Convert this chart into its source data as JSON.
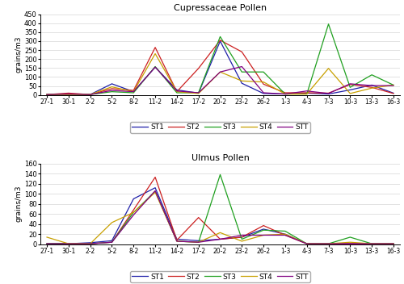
{
  "x_labels": [
    "27-1",
    "30-1",
    "2-2",
    "5-2",
    "8-2",
    "11-2",
    "14-2",
    "17-2",
    "20-2",
    "23-2",
    "26-2",
    "1-3",
    "4-3",
    "7-3",
    "10-3",
    "13-3",
    "16-3"
  ],
  "cup_ST1": [
    2,
    5,
    2,
    62,
    18,
    155,
    28,
    10,
    300,
    65,
    8,
    5,
    10,
    5,
    28,
    55,
    10
  ],
  "cup_ST2": [
    2,
    10,
    2,
    35,
    25,
    265,
    18,
    148,
    305,
    240,
    60,
    12,
    12,
    10,
    58,
    42,
    8
  ],
  "cup_ST3": [
    2,
    2,
    2,
    18,
    12,
    158,
    12,
    12,
    325,
    128,
    128,
    5,
    5,
    395,
    42,
    112,
    55
  ],
  "cup_ST4": [
    2,
    2,
    2,
    45,
    18,
    230,
    18,
    8,
    128,
    78,
    72,
    5,
    5,
    148,
    8,
    38,
    55
  ],
  "cup_STT": [
    2,
    5,
    2,
    25,
    18,
    155,
    22,
    12,
    128,
    158,
    12,
    5,
    22,
    8,
    62,
    52,
    52
  ],
  "ulm_ST1": [
    1,
    1,
    3,
    7,
    90,
    112,
    10,
    7,
    10,
    14,
    30,
    20,
    1,
    1,
    1,
    1,
    1
  ],
  "ulm_ST2": [
    1,
    1,
    1,
    4,
    68,
    133,
    8,
    53,
    10,
    14,
    37,
    18,
    1,
    1,
    1,
    1,
    1
  ],
  "ulm_ST3": [
    1,
    1,
    1,
    4,
    63,
    105,
    6,
    4,
    138,
    10,
    28,
    26,
    1,
    1,
    14,
    1,
    1
  ],
  "ulm_ST4": [
    14,
    1,
    1,
    43,
    63,
    103,
    6,
    4,
    23,
    6,
    18,
    20,
    1,
    1,
    4,
    1,
    1
  ],
  "ulm_STT": [
    1,
    1,
    1,
    4,
    58,
    106,
    6,
    4,
    10,
    18,
    18,
    18,
    1,
    1,
    1,
    1,
    1
  ],
  "colors": {
    "ST1": "#1f1fa8",
    "ST2": "#cc2020",
    "ST3": "#20a020",
    "ST4": "#c8a000",
    "STT": "#800080"
  },
  "cup_title": "Cupressaceae Pollen",
  "ulm_title": "Ulmus Pollen",
  "ylabel": "grains/m3",
  "cup_ylim": [
    0,
    450
  ],
  "ulm_ylim": [
    0,
    160
  ],
  "cup_yticks": [
    0,
    50,
    100,
    150,
    200,
    250,
    300,
    350,
    400,
    450
  ],
  "ulm_yticks": [
    0,
    20,
    40,
    60,
    80,
    100,
    120,
    140,
    160
  ],
  "legend_entries": [
    "ST1",
    "ST2",
    "ST3",
    "ST4",
    "STT"
  ]
}
